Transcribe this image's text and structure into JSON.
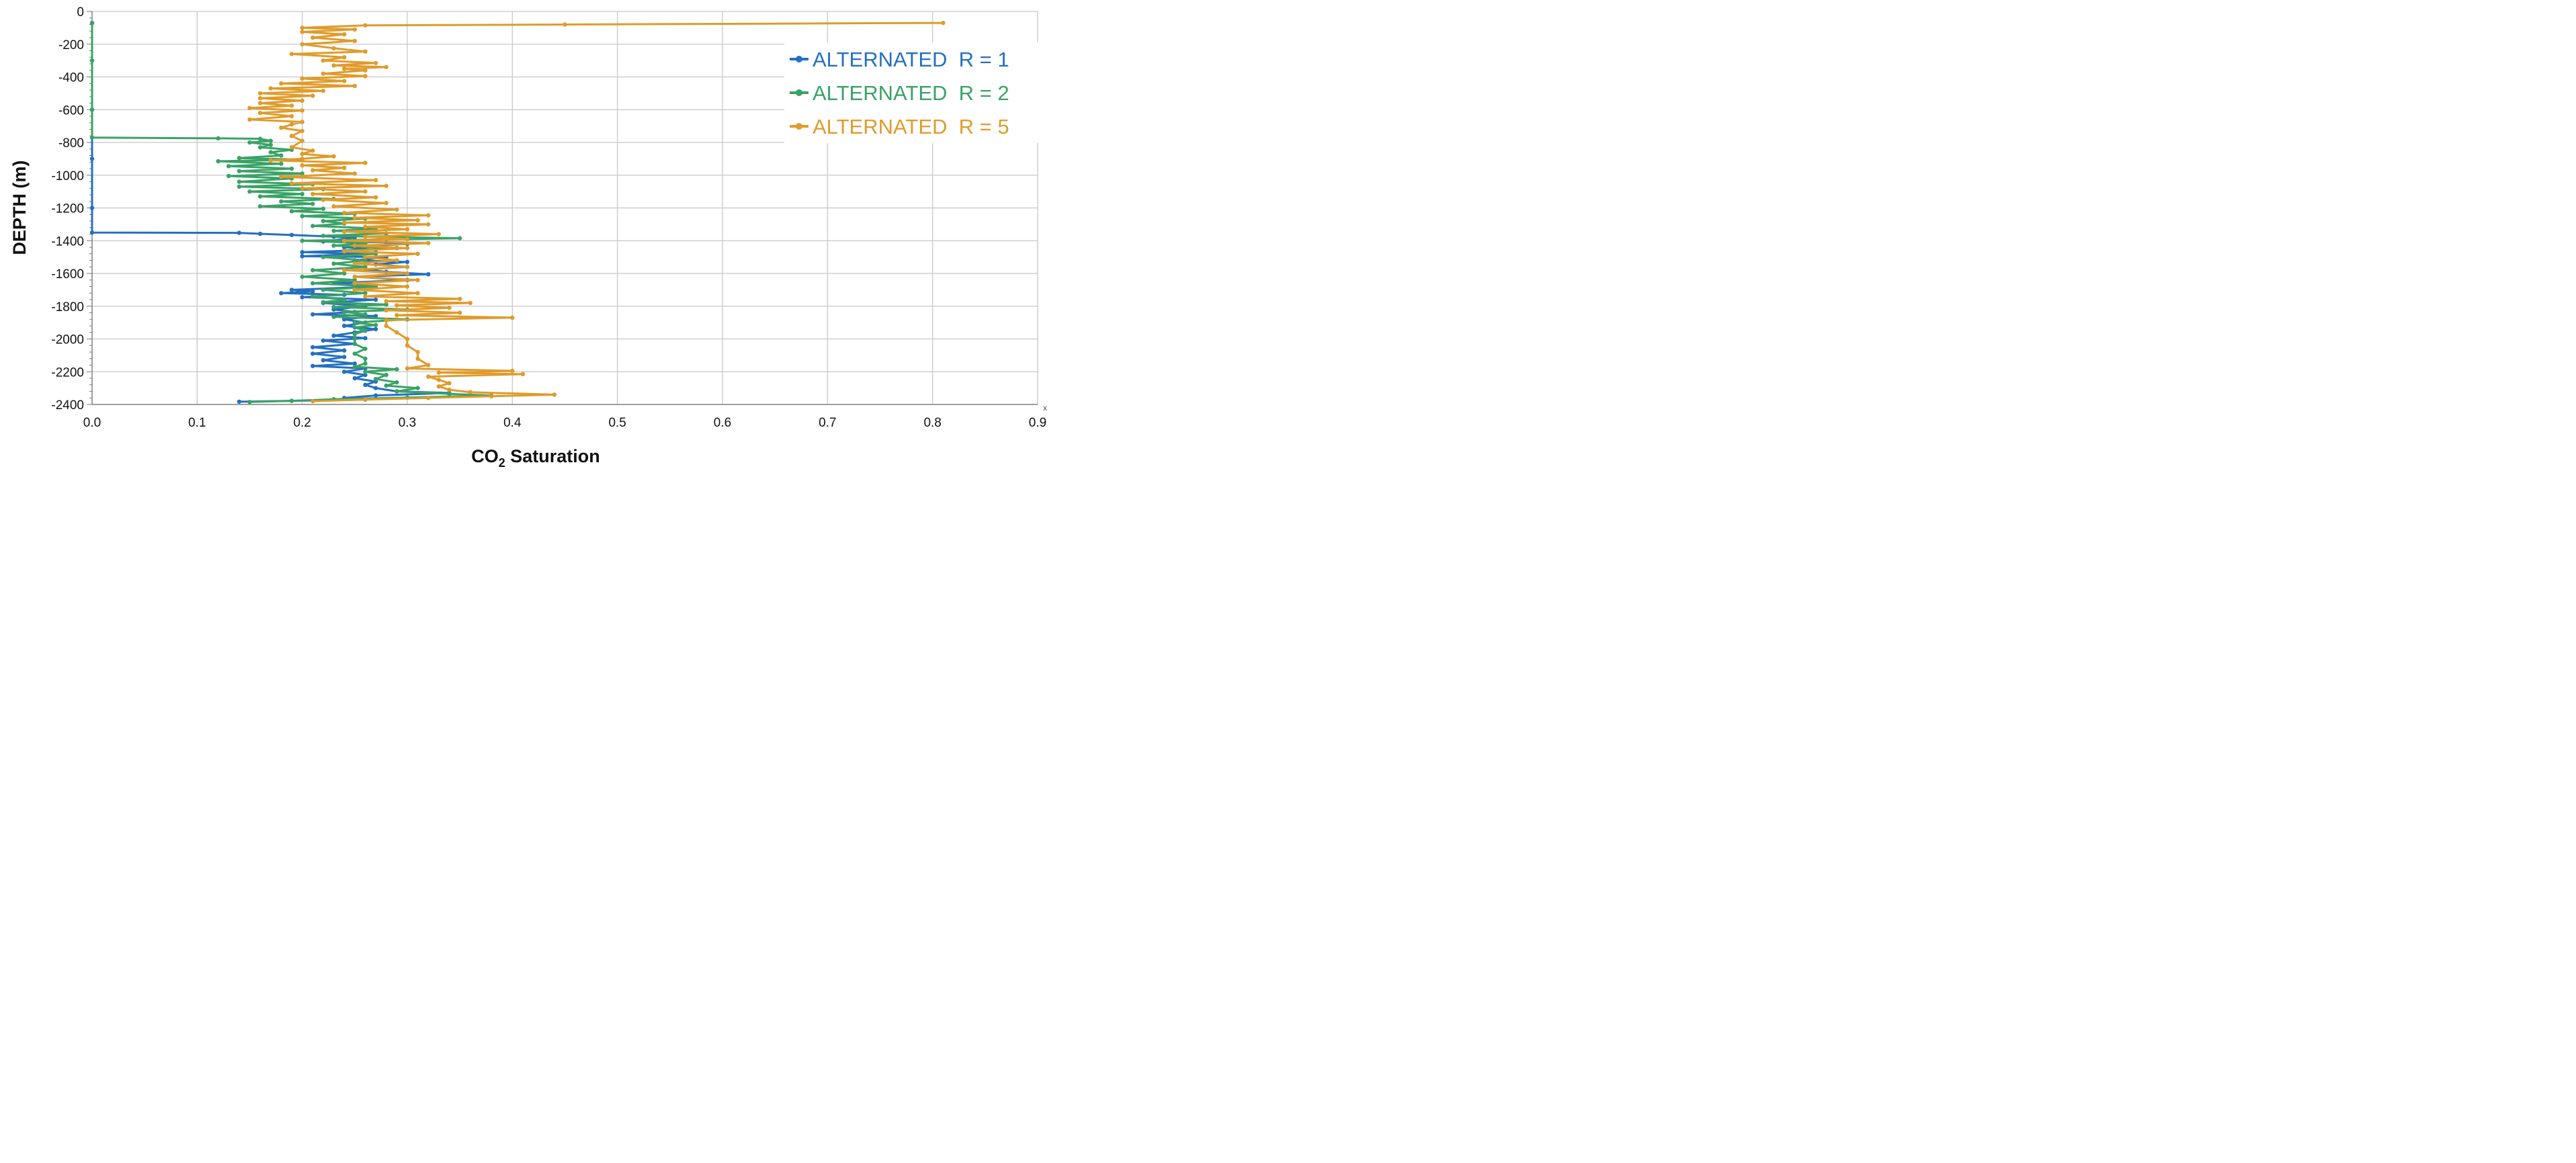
{
  "chart_data": {
    "type": "line",
    "xlabel": "CO",
    "xlabel_sub": "2",
    "xlabel_rest": " Saturation",
    "ylabel": "DEPTH (m)",
    "xlim": [
      0,
      0.9
    ],
    "ylim": [
      -2400,
      0
    ],
    "xticks": [
      0.0,
      0.1,
      0.2,
      0.3,
      0.4,
      0.5,
      0.6,
      0.7,
      0.8,
      0.9
    ],
    "xtick_labels": [
      "0.0",
      "0.1",
      "0.2",
      "0.3",
      "0.4",
      "0.5",
      "0.6",
      "0.7",
      "0.8",
      "0.9"
    ],
    "yticks": [
      0,
      -200,
      -400,
      -600,
      -800,
      -1000,
      -1200,
      -1400,
      -1600,
      -1800,
      -2000,
      -2200,
      -2400
    ],
    "ytick_labels": [
      "0",
      "-200",
      "-400",
      "-600",
      "-800",
      "-1000",
      "-1200",
      "-1400",
      "-1600",
      "-1800",
      "-2000",
      "-2200",
      "-2400"
    ],
    "x_axis_marker": "x",
    "grid": true,
    "legend_position": "top-right",
    "series": [
      {
        "name": "ALTERNATED R = 1",
        "legend_label": "ALTERNATED  R = 1",
        "color": "#2470c0",
        "points": [
          [
            0.0,
            -70
          ],
          [
            0.0,
            -300
          ],
          [
            0.0,
            -600
          ],
          [
            0.0,
            -900
          ],
          [
            0.0,
            -1200
          ],
          [
            0.0,
            -1350
          ],
          [
            0.14,
            -1352
          ],
          [
            0.16,
            -1358
          ],
          [
            0.19,
            -1365
          ],
          [
            0.23,
            -1375
          ],
          [
            0.25,
            -1380
          ],
          [
            0.22,
            -1405
          ],
          [
            0.28,
            -1410
          ],
          [
            0.3,
            -1420
          ],
          [
            0.24,
            -1440
          ],
          [
            0.27,
            -1455
          ],
          [
            0.2,
            -1470
          ],
          [
            0.26,
            -1480
          ],
          [
            0.2,
            -1495
          ],
          [
            0.28,
            -1500
          ],
          [
            0.25,
            -1520
          ],
          [
            0.3,
            -1530
          ],
          [
            0.27,
            -1545
          ],
          [
            0.3,
            -1560
          ],
          [
            0.26,
            -1575
          ],
          [
            0.28,
            -1590
          ],
          [
            0.32,
            -1605
          ],
          [
            0.25,
            -1620
          ],
          [
            0.3,
            -1640
          ],
          [
            0.23,
            -1660
          ],
          [
            0.27,
            -1680
          ],
          [
            0.19,
            -1700
          ],
          [
            0.21,
            -1710
          ],
          [
            0.18,
            -1720
          ],
          [
            0.24,
            -1730
          ],
          [
            0.2,
            -1745
          ],
          [
            0.27,
            -1760
          ],
          [
            0.22,
            -1780
          ],
          [
            0.26,
            -1800
          ],
          [
            0.23,
            -1820
          ],
          [
            0.25,
            -1835
          ],
          [
            0.21,
            -1850
          ],
          [
            0.27,
            -1860
          ],
          [
            0.24,
            -1880
          ],
          [
            0.26,
            -1900
          ],
          [
            0.24,
            -1920
          ],
          [
            0.27,
            -1940
          ],
          [
            0.25,
            -1960
          ],
          [
            0.23,
            -1980
          ],
          [
            0.26,
            -1995
          ],
          [
            0.22,
            -2010
          ],
          [
            0.25,
            -2030
          ],
          [
            0.21,
            -2050
          ],
          [
            0.24,
            -2070
          ],
          [
            0.21,
            -2090
          ],
          [
            0.24,
            -2110
          ],
          [
            0.22,
            -2130
          ],
          [
            0.25,
            -2150
          ],
          [
            0.21,
            -2165
          ],
          [
            0.26,
            -2180
          ],
          [
            0.24,
            -2200
          ],
          [
            0.26,
            -2220
          ],
          [
            0.25,
            -2240
          ],
          [
            0.27,
            -2260
          ],
          [
            0.26,
            -2280
          ],
          [
            0.27,
            -2300
          ],
          [
            0.29,
            -2320
          ],
          [
            0.34,
            -2330
          ],
          [
            0.27,
            -2345
          ],
          [
            0.24,
            -2360
          ],
          [
            0.26,
            -2370
          ],
          [
            0.19,
            -2378
          ],
          [
            0.14,
            -2383
          ]
        ]
      },
      {
        "name": "ALTERNATED R = 2",
        "legend_label": "ALTERNATED  R = 2",
        "color": "#3aa266",
        "points": [
          [
            0.0,
            -70
          ],
          [
            0.0,
            -300
          ],
          [
            0.0,
            -600
          ],
          [
            0.0,
            -770
          ],
          [
            0.12,
            -775
          ],
          [
            0.16,
            -778
          ],
          [
            0.17,
            -790
          ],
          [
            0.15,
            -800
          ],
          [
            0.17,
            -815
          ],
          [
            0.16,
            -830
          ],
          [
            0.19,
            -845
          ],
          [
            0.17,
            -860
          ],
          [
            0.18,
            -880
          ],
          [
            0.14,
            -895
          ],
          [
            0.2,
            -905
          ],
          [
            0.12,
            -915
          ],
          [
            0.18,
            -930
          ],
          [
            0.13,
            -945
          ],
          [
            0.19,
            -960
          ],
          [
            0.14,
            -975
          ],
          [
            0.2,
            -990
          ],
          [
            0.13,
            -1005
          ],
          [
            0.19,
            -1020
          ],
          [
            0.14,
            -1040
          ],
          [
            0.21,
            -1055
          ],
          [
            0.14,
            -1070
          ],
          [
            0.22,
            -1085
          ],
          [
            0.15,
            -1100
          ],
          [
            0.2,
            -1115
          ],
          [
            0.16,
            -1130
          ],
          [
            0.23,
            -1145
          ],
          [
            0.18,
            -1160
          ],
          [
            0.21,
            -1175
          ],
          [
            0.16,
            -1190
          ],
          [
            0.22,
            -1205
          ],
          [
            0.19,
            -1220
          ],
          [
            0.25,
            -1235
          ],
          [
            0.2,
            -1250
          ],
          [
            0.26,
            -1265
          ],
          [
            0.22,
            -1280
          ],
          [
            0.24,
            -1295
          ],
          [
            0.21,
            -1310
          ],
          [
            0.27,
            -1325
          ],
          [
            0.23,
            -1340
          ],
          [
            0.28,
            -1355
          ],
          [
            0.22,
            -1370
          ],
          [
            0.35,
            -1385
          ],
          [
            0.2,
            -1400
          ],
          [
            0.26,
            -1415
          ],
          [
            0.23,
            -1430
          ],
          [
            0.29,
            -1445
          ],
          [
            0.24,
            -1460
          ],
          [
            0.27,
            -1480
          ],
          [
            0.22,
            -1500
          ],
          [
            0.26,
            -1520
          ],
          [
            0.23,
            -1540
          ],
          [
            0.26,
            -1560
          ],
          [
            0.21,
            -1580
          ],
          [
            0.24,
            -1600
          ],
          [
            0.2,
            -1620
          ],
          [
            0.25,
            -1640
          ],
          [
            0.21,
            -1660
          ],
          [
            0.27,
            -1680
          ],
          [
            0.22,
            -1700
          ],
          [
            0.26,
            -1720
          ],
          [
            0.21,
            -1740
          ],
          [
            0.24,
            -1760
          ],
          [
            0.22,
            -1775
          ],
          [
            0.28,
            -1790
          ],
          [
            0.23,
            -1805
          ],
          [
            0.3,
            -1820
          ],
          [
            0.24,
            -1835
          ],
          [
            0.26,
            -1850
          ],
          [
            0.23,
            -1865
          ],
          [
            0.3,
            -1880
          ],
          [
            0.25,
            -1900
          ],
          [
            0.27,
            -1915
          ],
          [
            0.25,
            -1930
          ],
          [
            0.26,
            -1950
          ],
          [
            0.25,
            -1970
          ],
          [
            0.25,
            -2000
          ],
          [
            0.25,
            -2030
          ],
          [
            0.26,
            -2060
          ],
          [
            0.25,
            -2090
          ],
          [
            0.26,
            -2120
          ],
          [
            0.26,
            -2150
          ],
          [
            0.25,
            -2170
          ],
          [
            0.29,
            -2185
          ],
          [
            0.26,
            -2200
          ],
          [
            0.28,
            -2220
          ],
          [
            0.27,
            -2245
          ],
          [
            0.29,
            -2265
          ],
          [
            0.28,
            -2285
          ],
          [
            0.31,
            -2300
          ],
          [
            0.29,
            -2320
          ],
          [
            0.34,
            -2335
          ],
          [
            0.38,
            -2345
          ],
          [
            0.3,
            -2358
          ],
          [
            0.23,
            -2368
          ],
          [
            0.19,
            -2378
          ],
          [
            0.15,
            -2385
          ]
        ]
      },
      {
        "name": "ALTERNATED R = 5",
        "legend_label": "ALTERNATED  R = 5",
        "color": "#df9b2b",
        "points": [
          [
            0.81,
            -70
          ],
          [
            0.45,
            -80
          ],
          [
            0.26,
            -85
          ],
          [
            0.2,
            -100
          ],
          [
            0.25,
            -110
          ],
          [
            0.2,
            -125
          ],
          [
            0.24,
            -140
          ],
          [
            0.21,
            -160
          ],
          [
            0.25,
            -180
          ],
          [
            0.2,
            -200
          ],
          [
            0.23,
            -225
          ],
          [
            0.26,
            -245
          ],
          [
            0.19,
            -260
          ],
          [
            0.24,
            -280
          ],
          [
            0.22,
            -300
          ],
          [
            0.27,
            -315
          ],
          [
            0.23,
            -330
          ],
          [
            0.28,
            -340
          ],
          [
            0.24,
            -350
          ],
          [
            0.26,
            -360
          ],
          [
            0.22,
            -380
          ],
          [
            0.26,
            -395
          ],
          [
            0.2,
            -410
          ],
          [
            0.24,
            -425
          ],
          [
            0.18,
            -440
          ],
          [
            0.25,
            -455
          ],
          [
            0.17,
            -470
          ],
          [
            0.22,
            -485
          ],
          [
            0.16,
            -500
          ],
          [
            0.21,
            -515
          ],
          [
            0.16,
            -530
          ],
          [
            0.2,
            -545
          ],
          [
            0.16,
            -560
          ],
          [
            0.19,
            -575
          ],
          [
            0.15,
            -590
          ],
          [
            0.2,
            -605
          ],
          [
            0.16,
            -620
          ],
          [
            0.19,
            -640
          ],
          [
            0.15,
            -660
          ],
          [
            0.2,
            -675
          ],
          [
            0.19,
            -690
          ],
          [
            0.18,
            -710
          ],
          [
            0.2,
            -730
          ],
          [
            0.19,
            -760
          ],
          [
            0.2,
            -790
          ],
          [
            0.19,
            -830
          ],
          [
            0.21,
            -850
          ],
          [
            0.2,
            -870
          ],
          [
            0.23,
            -885
          ],
          [
            0.2,
            -900
          ],
          [
            0.17,
            -910
          ],
          [
            0.26,
            -925
          ],
          [
            0.2,
            -940
          ],
          [
            0.24,
            -955
          ],
          [
            0.21,
            -970
          ],
          [
            0.25,
            -990
          ],
          [
            0.18,
            -1010
          ],
          [
            0.27,
            -1030
          ],
          [
            0.19,
            -1050
          ],
          [
            0.28,
            -1065
          ],
          [
            0.2,
            -1080
          ],
          [
            0.26,
            -1100
          ],
          [
            0.21,
            -1115
          ],
          [
            0.27,
            -1135
          ],
          [
            0.22,
            -1150
          ],
          [
            0.28,
            -1170
          ],
          [
            0.23,
            -1190
          ],
          [
            0.29,
            -1210
          ],
          [
            0.24,
            -1230
          ],
          [
            0.32,
            -1245
          ],
          [
            0.25,
            -1260
          ],
          [
            0.31,
            -1275
          ],
          [
            0.24,
            -1290
          ],
          [
            0.32,
            -1300
          ],
          [
            0.26,
            -1315
          ],
          [
            0.3,
            -1330
          ],
          [
            0.24,
            -1345
          ],
          [
            0.33,
            -1360
          ],
          [
            0.26,
            -1375
          ],
          [
            0.3,
            -1390
          ],
          [
            0.24,
            -1400
          ],
          [
            0.32,
            -1415
          ],
          [
            0.25,
            -1430
          ],
          [
            0.3,
            -1445
          ],
          [
            0.24,
            -1465
          ],
          [
            0.31,
            -1480
          ],
          [
            0.26,
            -1500
          ],
          [
            0.29,
            -1520
          ],
          [
            0.25,
            -1540
          ],
          [
            0.3,
            -1560
          ],
          [
            0.24,
            -1580
          ],
          [
            0.3,
            -1600
          ],
          [
            0.25,
            -1620
          ],
          [
            0.31,
            -1640
          ],
          [
            0.25,
            -1660
          ],
          [
            0.3,
            -1680
          ],
          [
            0.25,
            -1700
          ],
          [
            0.31,
            -1720
          ],
          [
            0.26,
            -1740
          ],
          [
            0.35,
            -1755
          ],
          [
            0.28,
            -1770
          ],
          [
            0.36,
            -1780
          ],
          [
            0.29,
            -1795
          ],
          [
            0.34,
            -1810
          ],
          [
            0.28,
            -1825
          ],
          [
            0.35,
            -1840
          ],
          [
            0.29,
            -1855
          ],
          [
            0.4,
            -1870
          ],
          [
            0.28,
            -1885
          ],
          [
            0.28,
            -1920
          ],
          [
            0.29,
            -1960
          ],
          [
            0.3,
            -2000
          ],
          [
            0.3,
            -2040
          ],
          [
            0.31,
            -2080
          ],
          [
            0.31,
            -2120
          ],
          [
            0.32,
            -2160
          ],
          [
            0.3,
            -2180
          ],
          [
            0.4,
            -2195
          ],
          [
            0.33,
            -2205
          ],
          [
            0.41,
            -2215
          ],
          [
            0.32,
            -2230
          ],
          [
            0.33,
            -2250
          ],
          [
            0.34,
            -2270
          ],
          [
            0.33,
            -2290
          ],
          [
            0.34,
            -2310
          ],
          [
            0.36,
            -2325
          ],
          [
            0.44,
            -2340
          ],
          [
            0.38,
            -2350
          ],
          [
            0.32,
            -2360
          ],
          [
            0.26,
            -2370
          ],
          [
            0.21,
            -2380
          ]
        ]
      }
    ]
  }
}
